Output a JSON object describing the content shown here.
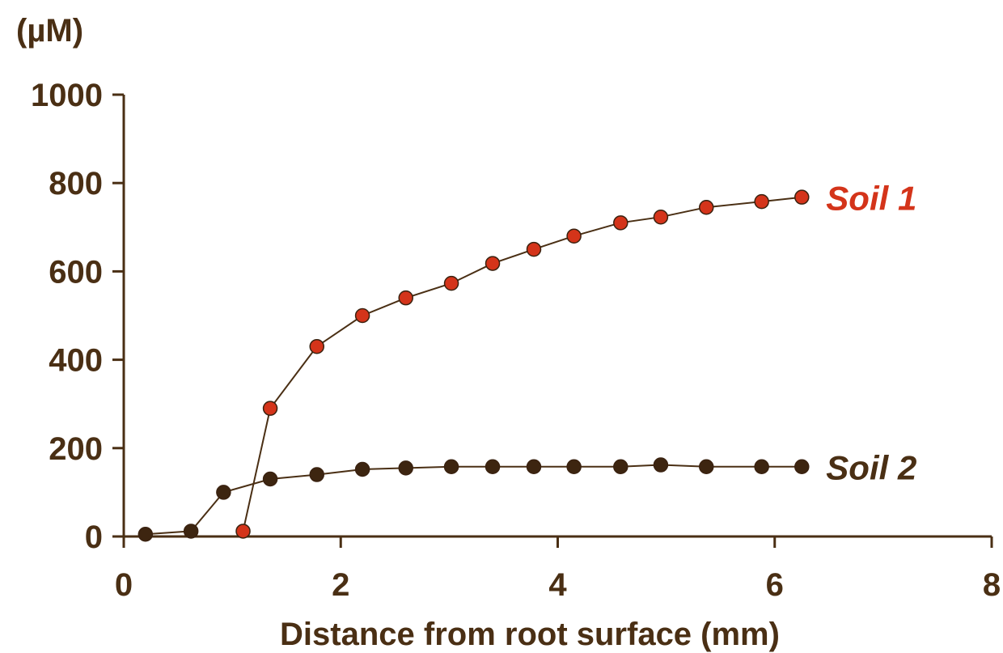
{
  "chart_data": {
    "type": "line",
    "ylabel": "(µM)",
    "xlabel": "Distance from root surface (mm)",
    "xlim": [
      0,
      8
    ],
    "ylim": [
      0,
      1000
    ],
    "x_ticks": [
      "0",
      "2",
      "4",
      "6",
      "8"
    ],
    "y_ticks": [
      "0",
      "200",
      "400",
      "600",
      "800",
      "1000"
    ],
    "grid": false,
    "axis_color": "#4a2f14",
    "series": [
      {
        "name": "Soil 1",
        "color": "#d4341a",
        "label_color": "#d4341a",
        "marker": "circle",
        "x": [
          1.1,
          1.35,
          1.78,
          2.2,
          2.6,
          3.02,
          3.4,
          3.78,
          4.15,
          4.58,
          4.95,
          5.37,
          5.88,
          6.25
        ],
        "y": [
          12,
          290,
          430,
          500,
          540,
          573,
          618,
          650,
          680,
          710,
          723,
          745,
          758,
          768
        ]
      },
      {
        "name": "Soil 2",
        "color": "#3d2510",
        "label_color": "#4a2f14",
        "marker": "circle",
        "x": [
          0.2,
          0.62,
          0.92,
          1.35,
          1.78,
          2.2,
          2.6,
          3.02,
          3.4,
          3.78,
          4.15,
          4.58,
          4.95,
          5.37,
          5.88,
          6.25
        ],
        "y": [
          5,
          12,
          100,
          130,
          140,
          152,
          155,
          158,
          158,
          158,
          158,
          158,
          162,
          158,
          158,
          158
        ]
      }
    ]
  }
}
